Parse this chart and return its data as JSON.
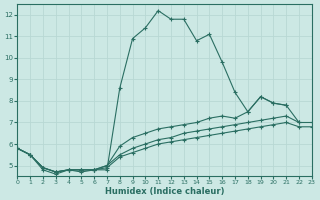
{
  "xlabel": "Humidex (Indice chaleur)",
  "bg_color": "#cce8e4",
  "grid_color": "#b8d8d4",
  "line_color": "#2a6e62",
  "xlim": [
    0,
    23
  ],
  "ylim": [
    4.5,
    12.5
  ],
  "xticks": [
    0,
    1,
    2,
    3,
    4,
    5,
    6,
    7,
    8,
    9,
    10,
    11,
    12,
    13,
    14,
    15,
    16,
    17,
    18,
    19,
    20,
    21,
    22,
    23
  ],
  "yticks": [
    5,
    6,
    7,
    8,
    9,
    10,
    11,
    12
  ],
  "series1_x": [
    0,
    1,
    2,
    3,
    4,
    5,
    6,
    7,
    8,
    9,
    10,
    11,
    12,
    13,
    14,
    15,
    16,
    17,
    18,
    19,
    20,
    21
  ],
  "series1_y": [
    5.8,
    5.5,
    4.8,
    4.6,
    4.8,
    4.7,
    4.8,
    4.8,
    8.6,
    10.9,
    11.4,
    12.2,
    11.8,
    11.8,
    10.8,
    11.1,
    9.8,
    8.4,
    7.5,
    8.2,
    7.9,
    7.8
  ],
  "series2_x": [
    0,
    1,
    2,
    3,
    4,
    5,
    6,
    7,
    8,
    9,
    10,
    11,
    12,
    13,
    14,
    15,
    16,
    17,
    18,
    19,
    20,
    21,
    22
  ],
  "series2_y": [
    5.8,
    5.5,
    4.9,
    4.7,
    4.8,
    4.8,
    4.8,
    5.0,
    5.9,
    6.3,
    6.5,
    6.7,
    6.8,
    6.9,
    7.0,
    7.2,
    7.3,
    7.2,
    7.5,
    8.2,
    7.9,
    7.8,
    7.0
  ],
  "series3_x": [
    0,
    1,
    2,
    3,
    4,
    5,
    6,
    7,
    8,
    9,
    10,
    11,
    12,
    13,
    14,
    15,
    16,
    17,
    18,
    19,
    20,
    21,
    22,
    23
  ],
  "series3_y": [
    5.8,
    5.5,
    4.9,
    4.7,
    4.8,
    4.8,
    4.8,
    5.0,
    5.5,
    5.8,
    6.0,
    6.2,
    6.3,
    6.5,
    6.6,
    6.7,
    6.8,
    6.9,
    7.0,
    7.1,
    7.2,
    7.3,
    7.0,
    7.0
  ],
  "series4_x": [
    0,
    1,
    2,
    3,
    4,
    5,
    6,
    7,
    8,
    9,
    10,
    11,
    12,
    13,
    14,
    15,
    16,
    17,
    18,
    19,
    20,
    21,
    22,
    23
  ],
  "series4_y": [
    5.8,
    5.5,
    4.9,
    4.7,
    4.8,
    4.8,
    4.8,
    4.9,
    5.4,
    5.6,
    5.8,
    6.0,
    6.1,
    6.2,
    6.3,
    6.4,
    6.5,
    6.6,
    6.7,
    6.8,
    6.9,
    7.0,
    6.8,
    6.8
  ]
}
